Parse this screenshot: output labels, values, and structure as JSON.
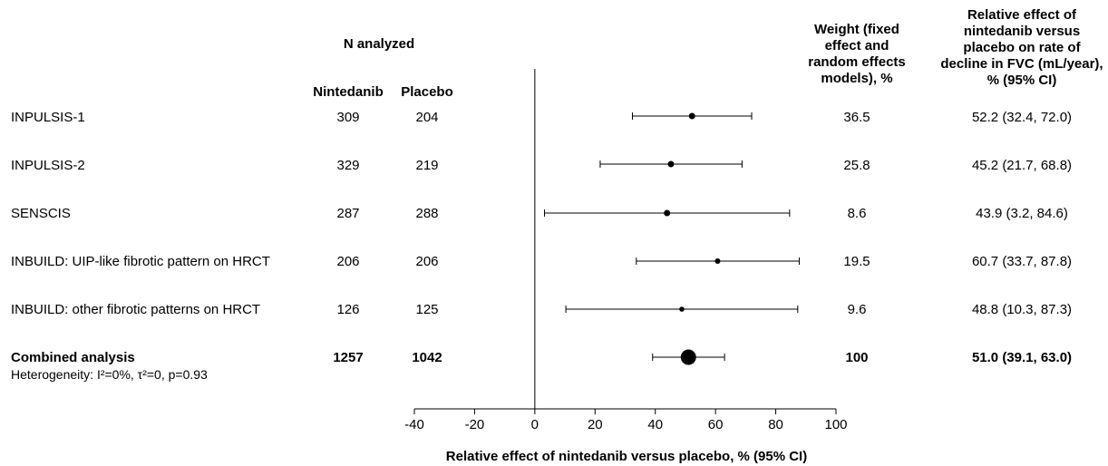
{
  "chart_data": {
    "type": "forest",
    "columns": {
      "n_analyzed": "N analyzed",
      "nintedanib": "Nintedanib",
      "placebo": "Placebo",
      "weight": [
        "Weight (fixed",
        "effect and",
        "random effects",
        "models), %"
      ],
      "effect": [
        "Relative effect of",
        "nintedanib versus",
        "placebo on rate of",
        "decline in FVC (mL/year),",
        "% (95% CI)"
      ]
    },
    "rows": [
      {
        "study": "INPULSIS-1",
        "nintedanib_n": "309",
        "placebo_n": "204",
        "estimate": 52.2,
        "ci_low": 32.4,
        "ci_high": 72.0,
        "weight": "36.5",
        "effect_text": "52.2 (32.4, 72.0)"
      },
      {
        "study": "INPULSIS-2",
        "nintedanib_n": "329",
        "placebo_n": "219",
        "estimate": 45.2,
        "ci_low": 21.7,
        "ci_high": 68.8,
        "weight": "25.8",
        "effect_text": "45.2 (21.7, 68.8)"
      },
      {
        "study": "SENSCIS",
        "nintedanib_n": "287",
        "placebo_n": "288",
        "estimate": 43.9,
        "ci_low": 3.2,
        "ci_high": 84.6,
        "weight": "8.6",
        "effect_text": "43.9 (3.2, 84.6)"
      },
      {
        "study": "INBUILD: UIP-like fibrotic pattern on HRCT",
        "nintedanib_n": "206",
        "placebo_n": "206",
        "estimate": 60.7,
        "ci_low": 33.7,
        "ci_high": 87.8,
        "weight": "19.5",
        "effect_text": "60.7 (33.7, 87.8)"
      },
      {
        "study": "INBUILD: other fibrotic patterns on HRCT",
        "nintedanib_n": "126",
        "placebo_n": "125",
        "estimate": 48.8,
        "ci_low": 10.3,
        "ci_high": 87.3,
        "weight": "9.6",
        "effect_text": "48.8 (10.3, 87.3)"
      }
    ],
    "combined": {
      "study": "Combined analysis",
      "nintedanib_n": "1257",
      "placebo_n": "1042",
      "estimate": 51.0,
      "ci_low": 39.1,
      "ci_high": 63.0,
      "weight": "100",
      "effect_text": "51.0 (39.1, 63.0)",
      "heterogeneity": "Heterogeneity: I²=0%, τ²=0, p=0.93"
    },
    "x_axis": {
      "label": "Relative effect of nintedanib versus placebo, % (95% CI)",
      "ticks": [
        -40,
        -20,
        0,
        20,
        40,
        60,
        80,
        100
      ],
      "xlim": [
        -40,
        100
      ],
      "reference_line": 0
    },
    "grid": false
  }
}
